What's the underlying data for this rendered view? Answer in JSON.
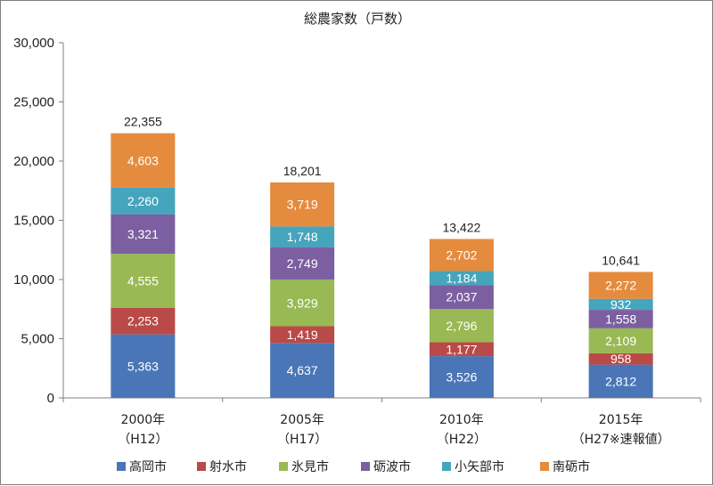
{
  "chart_data": {
    "type": "bar",
    "stacked": true,
    "title": "総農家数（戸数）",
    "categories": [
      {
        "line1": "2000年",
        "line2": "（H12）"
      },
      {
        "line1": "2005年",
        "line2": "（H17）"
      },
      {
        "line1": "2010年",
        "line2": "（H22）"
      },
      {
        "line1": "2015年",
        "line2": "（H27※速報値）"
      }
    ],
    "series": [
      {
        "name": "高岡市",
        "color": "#4a76b8",
        "values": [
          5363,
          4637,
          3526,
          2812
        ],
        "labels": [
          "5,363",
          "4,637",
          "3,526",
          "2,812"
        ]
      },
      {
        "name": "射水市",
        "color": "#b94a48",
        "values": [
          2253,
          1419,
          1177,
          958
        ],
        "labels": [
          "2,253",
          "1,419",
          "1,177",
          "958"
        ]
      },
      {
        "name": "氷見市",
        "color": "#98b954",
        "values": [
          4555,
          3929,
          2796,
          2109
        ],
        "labels": [
          "4,555",
          "3,929",
          "2,796",
          "2,109"
        ]
      },
      {
        "name": "砺波市",
        "color": "#7b5fa0",
        "values": [
          3321,
          2749,
          2037,
          1558
        ],
        "labels": [
          "3,321",
          "2,749",
          "2,037",
          "1,558"
        ]
      },
      {
        "name": "小矢部市",
        "color": "#45a5bd",
        "values": [
          2260,
          1748,
          1184,
          932
        ],
        "labels": [
          "2,260",
          "1,748",
          "1,184",
          "932"
        ]
      },
      {
        "name": "南砺市",
        "color": "#e58b3e",
        "values": [
          4603,
          3719,
          2702,
          2272
        ],
        "labels": [
          "4,603",
          "3,719",
          "2,702",
          "2,272"
        ]
      }
    ],
    "totals": [
      22355,
      18201,
      13422,
      10641
    ],
    "total_labels": [
      "22,355",
      "18,201",
      "13,422",
      "10,641"
    ],
    "ylim": [
      0,
      30000
    ],
    "y_ticks": [
      0,
      5000,
      10000,
      15000,
      20000,
      25000,
      30000
    ],
    "y_tick_labels": [
      "0",
      "5,000",
      "10,000",
      "15,000",
      "20,000",
      "25,000",
      "30,000"
    ],
    "grid": false,
    "legend_position": "bottom"
  }
}
